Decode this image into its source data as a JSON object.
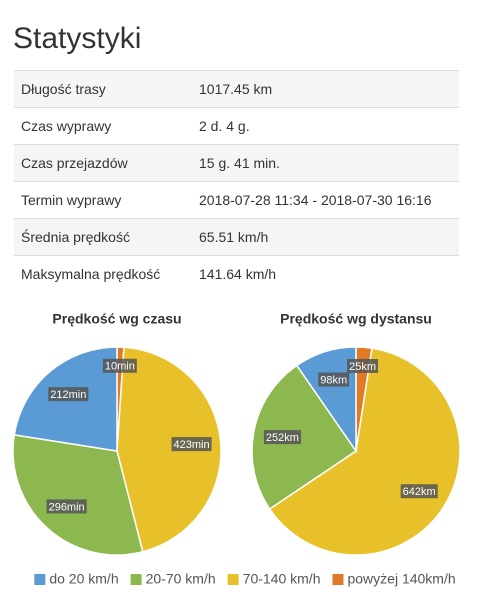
{
  "header": {
    "title": "Statystyki"
  },
  "table": {
    "rows": [
      [
        "Długość trasy",
        "1017.45 km"
      ],
      [
        "Czas wyprawy",
        "2 d. 4 g."
      ],
      [
        "Czas przejazdów",
        "15 g. 41 min."
      ],
      [
        "Termin wyprawy",
        "2018-07-28 11:34 - 2018-07-30 16:16"
      ],
      [
        "Średnia prędkość",
        "65.51 km/h"
      ],
      [
        "Maksymalna prędkość",
        "141.64 km/h"
      ]
    ]
  },
  "legend": [
    {
      "name": "do 20 km/h",
      "color": "#5b9bd5"
    },
    {
      "name": "20-70 km/h",
      "color": "#8cb84f"
    },
    {
      "name": "70-140 km/h",
      "color": "#e8c12a"
    },
    {
      "name": "powyżej 140km/h",
      "color": "#e07a26"
    }
  ],
  "chart_data": [
    {
      "type": "pie",
      "title": "Prędkość wg czasu",
      "values": [
        212,
        296,
        423,
        10
      ],
      "value_labels": [
        "212min",
        "296min",
        "423min",
        "10min"
      ]
    },
    {
      "type": "pie",
      "title": "Prędkość wg dystansu",
      "values": [
        98,
        252,
        642,
        25
      ],
      "value_labels": [
        "98km",
        "252km",
        "642km",
        "25km"
      ]
    }
  ]
}
